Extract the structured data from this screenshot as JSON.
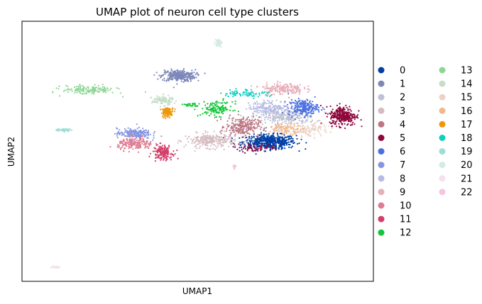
{
  "chart_data": {
    "type": "scatter",
    "title": "UMAP plot of neuron cell type clusters",
    "xlabel": "UMAP1",
    "ylabel": "UMAP2",
    "xlim": [
      -1,
      21
    ],
    "ylim": [
      -21,
      1
    ],
    "grid": false,
    "ticks": false,
    "legend": {
      "position": "right",
      "columns": 2,
      "marker": "circle"
    },
    "series": [
      {
        "name": "0",
        "color": "#023fa5",
        "clusters": [
          {
            "x": 14.5,
            "y": -9.2,
            "sx": 1.5,
            "sy": 0.55,
            "n": 520
          }
        ]
      },
      {
        "name": "1",
        "color": "#7d87b9",
        "clusters": [
          {
            "x": 8.8,
            "y": -3.6,
            "sx": 0.95,
            "sy": 0.45,
            "n": 300
          }
        ]
      },
      {
        "name": "2",
        "color": "#bec1d4",
        "clusters": [
          {
            "x": 15.5,
            "y": -7.1,
            "sx": 1.7,
            "sy": 0.6,
            "n": 260
          }
        ]
      },
      {
        "name": "3",
        "color": "#d6bcc0",
        "clusters": [
          {
            "x": 10.8,
            "y": -9.1,
            "sx": 1.4,
            "sy": 0.55,
            "n": 260
          }
        ]
      },
      {
        "name": "4",
        "color": "#bb7784",
        "clusters": [
          {
            "x": 12.8,
            "y": -7.9,
            "sx": 0.95,
            "sy": 0.7,
            "n": 240
          }
        ]
      },
      {
        "name": "5",
        "color": "#8e063b",
        "clusters": [
          {
            "x": 19.1,
            "y": -7.0,
            "sx": 0.75,
            "sy": 0.75,
            "n": 300
          },
          {
            "x": 13.5,
            "y": -9.7,
            "sx": 1.6,
            "sy": 0.3,
            "n": 60
          }
        ]
      },
      {
        "name": "6",
        "color": "#4a6fe3",
        "clusters": [
          {
            "x": 16.6,
            "y": -6.3,
            "sx": 0.85,
            "sy": 0.6,
            "n": 220
          }
        ]
      },
      {
        "name": "7",
        "color": "#8595e1",
        "clusters": [
          {
            "x": 6.0,
            "y": -8.5,
            "sx": 0.95,
            "sy": 0.4,
            "n": 200
          }
        ]
      },
      {
        "name": "8",
        "color": "#b5bbe3",
        "clusters": [
          {
            "x": 14.5,
            "y": -6.3,
            "sx": 1.2,
            "sy": 0.5,
            "n": 160
          }
        ]
      },
      {
        "name": "9",
        "color": "#e6afb9",
        "clusters": [
          {
            "x": 15.3,
            "y": -4.7,
            "sx": 1.2,
            "sy": 0.45,
            "n": 180
          }
        ]
      },
      {
        "name": "10",
        "color": "#e07b91",
        "clusters": [
          {
            "x": 6.1,
            "y": -9.4,
            "sx": 1.0,
            "sy": 0.45,
            "n": 180
          }
        ]
      },
      {
        "name": "11",
        "color": "#d33f6a",
        "clusters": [
          {
            "x": 7.8,
            "y": -10.1,
            "sx": 0.55,
            "sy": 0.55,
            "n": 170
          }
        ]
      },
      {
        "name": "12",
        "color": "#11c638",
        "clusters": [
          {
            "x": 11.2,
            "y": -6.4,
            "sx": 0.9,
            "sy": 0.55,
            "n": 130
          },
          {
            "x": 9.6,
            "y": -6.1,
            "sx": 0.5,
            "sy": 0.15,
            "n": 30
          }
        ]
      },
      {
        "name": "13",
        "color": "#8dd593",
        "clusters": [
          {
            "x": 3.2,
            "y": -4.8,
            "sx": 1.5,
            "sy": 0.35,
            "n": 150
          }
        ]
      },
      {
        "name": "14",
        "color": "#c6dec7",
        "clusters": [
          {
            "x": 7.8,
            "y": -5.7,
            "sx": 0.6,
            "sy": 0.35,
            "n": 120
          }
        ]
      },
      {
        "name": "15",
        "color": "#ead3c6",
        "clusters": [
          {
            "x": 17.0,
            "y": -8.2,
            "sx": 1.0,
            "sy": 0.5,
            "n": 110
          }
        ]
      },
      {
        "name": "16",
        "color": "#f0b98d",
        "clusters": [
          {
            "x": 15.5,
            "y": -8.1,
            "sx": 1.0,
            "sy": 0.4,
            "n": 100
          }
        ]
      },
      {
        "name": "17",
        "color": "#ef9708",
        "clusters": [
          {
            "x": 8.1,
            "y": -6.7,
            "sx": 0.35,
            "sy": 0.35,
            "n": 100
          }
        ]
      },
      {
        "name": "18",
        "color": "#0fcfc0",
        "clusters": [
          {
            "x": 13.0,
            "y": -5.1,
            "sx": 1.3,
            "sy": 0.3,
            "n": 80
          }
        ]
      },
      {
        "name": "19",
        "color": "#9cded6",
        "clusters": [
          {
            "x": 1.6,
            "y": -8.2,
            "sx": 0.45,
            "sy": 0.1,
            "n": 60
          }
        ]
      },
      {
        "name": "20",
        "color": "#d5eae7",
        "clusters": [
          {
            "x": 11.3,
            "y": -0.8,
            "sx": 0.18,
            "sy": 0.3,
            "n": 60
          }
        ]
      },
      {
        "name": "21",
        "color": "#f3e1eb",
        "clusters": [
          {
            "x": 1.1,
            "y": -19.8,
            "sx": 0.25,
            "sy": 0.07,
            "n": 40
          }
        ]
      },
      {
        "name": "22",
        "color": "#f6c4e1",
        "clusters": [
          {
            "x": 12.3,
            "y": -11.3,
            "sx": 0.07,
            "sy": 0.18,
            "n": 20
          }
        ]
      }
    ]
  }
}
